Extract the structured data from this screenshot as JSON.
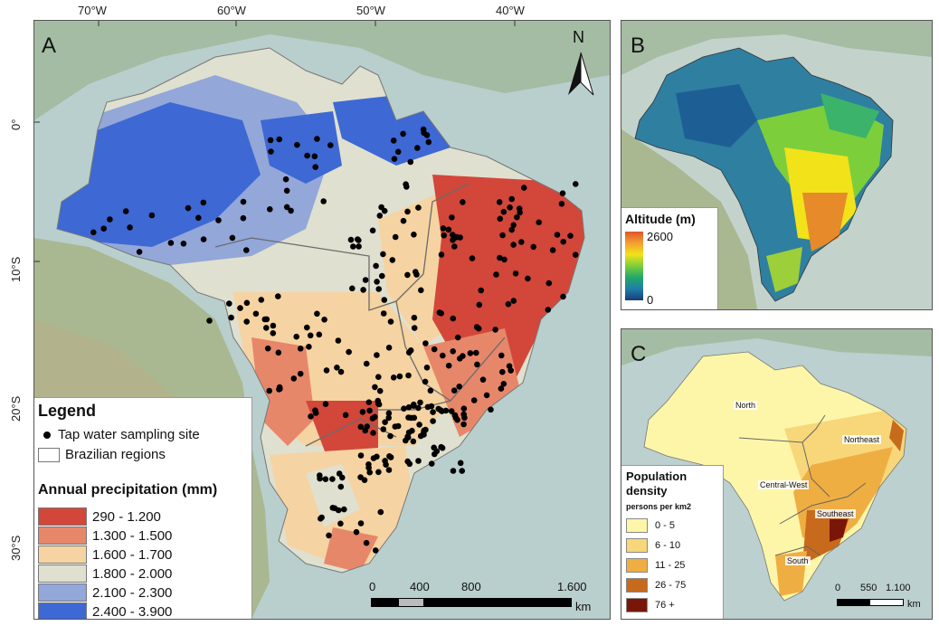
{
  "top_ticks": [
    "70°W",
    "60°W",
    "50°W",
    "40°W"
  ],
  "left_ticks": [
    "0°",
    "10°S",
    "20°S",
    "30°S"
  ],
  "panel_a": {
    "letter": "A",
    "north": "N",
    "legend": {
      "title": "Legend",
      "site_label": "Tap water sampling site",
      "regions_label": "Brazilian regions",
      "precip_title": "Annual precipitation (mm)",
      "classes": [
        {
          "label": "290 - 1.200",
          "color": "#d2473a"
        },
        {
          "label": "1.300 - 1.500",
          "color": "#e7876a"
        },
        {
          "label": "1.600 - 1.700",
          "color": "#f6d3a2"
        },
        {
          "label": "1.800 - 2.000",
          "color": "#dfe0cf"
        },
        {
          "label": "2.100 - 2.300",
          "color": "#93a7d9"
        },
        {
          "label": "2.400 - 3.900",
          "color": "#3e68d4"
        }
      ]
    },
    "scale": {
      "labels": [
        "0",
        "400",
        "800",
        "1.600"
      ],
      "unit": "km"
    }
  },
  "panel_b": {
    "letter": "B",
    "legend_title": "Altitude (m)",
    "max_label": "2600",
    "min_label": "0"
  },
  "panel_c": {
    "letter": "C",
    "legend_title": "Population density",
    "legend_subtitle": "persons per km2",
    "classes": [
      {
        "label": "0 - 5",
        "color": "#fdf6a8"
      },
      {
        "label": "6 - 10",
        "color": "#f7d77a"
      },
      {
        "label": "11 - 25",
        "color": "#efae42"
      },
      {
        "label": "26 - 75",
        "color": "#c76a1c"
      },
      {
        "label": "76 +",
        "color": "#7a1608"
      }
    ],
    "regions": [
      "North",
      "Northeast",
      "Central-West",
      "Southeast",
      "South"
    ],
    "scale": {
      "labels": [
        "0",
        "550",
        "1.100"
      ],
      "unit": "km"
    }
  }
}
